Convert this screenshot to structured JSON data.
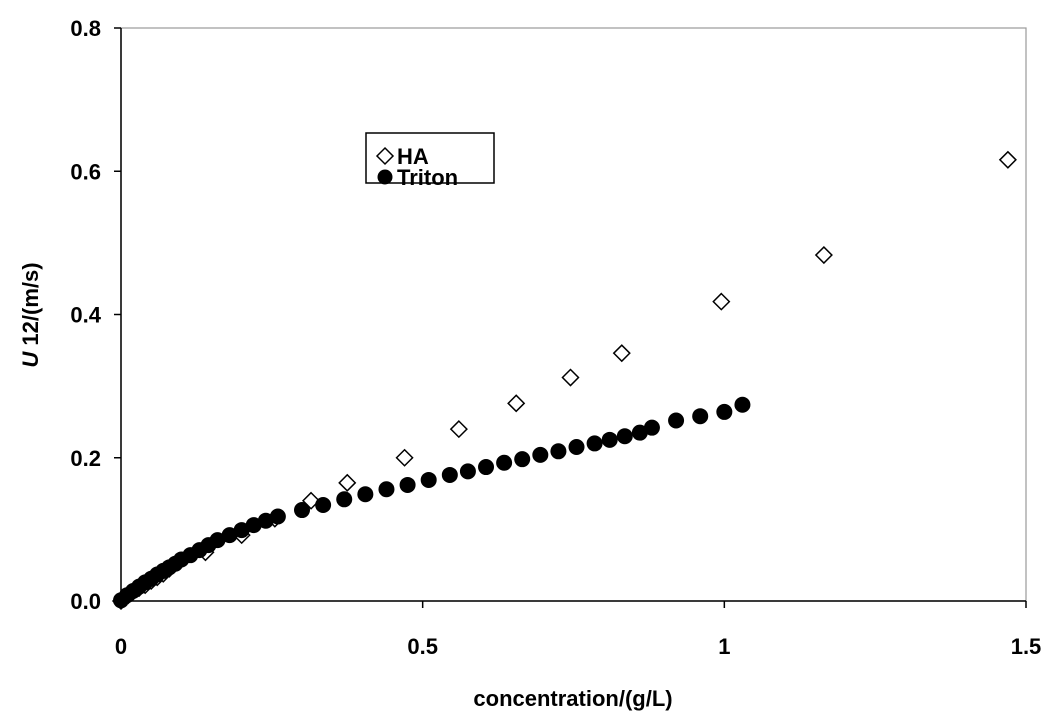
{
  "chart_data": {
    "type": "scatter",
    "title": "",
    "xlabel": "concentration/(g/L)",
    "ylabel": {
      "italic": "U",
      "rest": " 12/(m/s)"
    },
    "xlim": [
      0,
      1.5
    ],
    "ylim": [
      0,
      0.8
    ],
    "x_ticks": [
      0,
      0.5,
      1,
      1.5
    ],
    "x_tick_labels": [
      "0",
      "0.5",
      "1",
      "1.5"
    ],
    "y_ticks": [
      0,
      0.2,
      0.4,
      0.6,
      0.8
    ],
    "y_tick_labels": [
      "0.0",
      "0.2",
      "0.4",
      "0.6",
      "0.8"
    ],
    "grid": false,
    "legend_position": "upper-center",
    "series": [
      {
        "name": "HA",
        "marker": "open-diamond",
        "color": "#000000",
        "x": [
          0,
          0.005,
          0.012,
          0.02,
          0.03,
          0.04,
          0.05,
          0.06,
          0.07,
          0.08,
          0.14,
          0.2,
          0.255,
          0.315,
          0.375,
          0.47,
          0.56,
          0.655,
          0.745,
          0.83,
          0.995,
          1.165,
          1.47
        ],
        "y": [
          0,
          0.004,
          0.008,
          0.013,
          0.018,
          0.022,
          0.028,
          0.033,
          0.038,
          0.045,
          0.068,
          0.092,
          0.115,
          0.14,
          0.165,
          0.2,
          0.24,
          0.276,
          0.312,
          0.346,
          0.418,
          0.483,
          0.616
        ]
      },
      {
        "name": "Triton",
        "marker": "filled-circle",
        "color": "#000000",
        "x": [
          0,
          0.01,
          0.02,
          0.03,
          0.04,
          0.05,
          0.06,
          0.07,
          0.08,
          0.09,
          0.1,
          0.115,
          0.13,
          0.145,
          0.16,
          0.18,
          0.2,
          0.22,
          0.24,
          0.26,
          0.3,
          0.335,
          0.37,
          0.405,
          0.44,
          0.475,
          0.51,
          0.545,
          0.575,
          0.605,
          0.635,
          0.665,
          0.695,
          0.725,
          0.755,
          0.785,
          0.81,
          0.835,
          0.86,
          0.88,
          0.92,
          0.96,
          1.0,
          1.03
        ],
        "y": [
          0.001,
          0.008,
          0.014,
          0.02,
          0.026,
          0.031,
          0.037,
          0.042,
          0.047,
          0.052,
          0.058,
          0.064,
          0.071,
          0.078,
          0.085,
          0.092,
          0.099,
          0.106,
          0.112,
          0.118,
          0.127,
          0.134,
          0.142,
          0.149,
          0.156,
          0.162,
          0.169,
          0.176,
          0.181,
          0.187,
          0.193,
          0.198,
          0.204,
          0.209,
          0.215,
          0.22,
          0.225,
          0.23,
          0.235,
          0.242,
          0.252,
          0.258,
          0.264,
          0.274
        ]
      }
    ]
  }
}
